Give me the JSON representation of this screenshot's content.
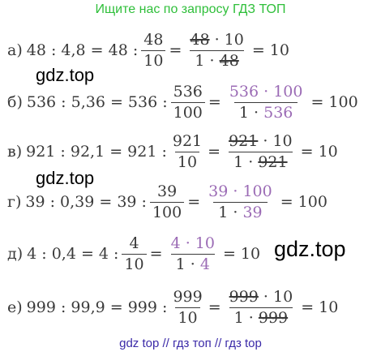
{
  "header": "Ищите нас по запросу ГДЗ ТОП",
  "footer": "gdz top  //  гдз топ  //  гдз top",
  "watermarks": [
    "gdz.top",
    "gdz.top",
    "gdz.top"
  ],
  "rows": [
    {
      "label": "а)",
      "lhs": "48 : 4,8 = 48 :",
      "f1_num": "48",
      "f1_den": "10",
      "f2_num_a": "48",
      "f2_num_b": " · 10",
      "f2_den_a": "1 · ",
      "f2_den_b": "48",
      "result": "= 10"
    },
    {
      "label": "б)",
      "lhs": "536 : 5,36 = 536 :",
      "f1_num": "536",
      "f1_den": "100",
      "f2_num_a": "536 · 100",
      "f2_num_b": "",
      "f2_den_a": "1 · ",
      "f2_den_b": "536",
      "result": "= 100"
    },
    {
      "label": "в)",
      "lhs": "921 : 92,1 = 921 :",
      "f1_num": "921",
      "f1_den": "10",
      "f2_num_a": "921",
      "f2_num_b": " · 10",
      "f2_den_a": "1 · ",
      "f2_den_b": "921",
      "result": "= 10"
    },
    {
      "label": "г)",
      "lhs": "39 : 0,39 = 39 :",
      "f1_num": "39",
      "f1_den": "100",
      "f2_num_a": "39 · 100",
      "f2_num_b": "",
      "f2_den_a": "1 · ",
      "f2_den_b": "39",
      "result": "= 100"
    },
    {
      "label": "д)",
      "lhs": "4 : 0,4 = 4 :",
      "f1_num": "4",
      "f1_den": "10",
      "f2_num_a": "4 · 10",
      "f2_num_b": "",
      "f2_den_a": "1 · ",
      "f2_den_b": "4",
      "result": "= 10"
    },
    {
      "label": "е)",
      "lhs": "999 : 99,9 = 999 :",
      "f1_num": "999",
      "f1_den": "10",
      "f2_num_a": "999",
      "f2_num_b": " · 10",
      "f2_den_a": "1 · ",
      "f2_den_b": "999",
      "result": "= 10"
    }
  ]
}
